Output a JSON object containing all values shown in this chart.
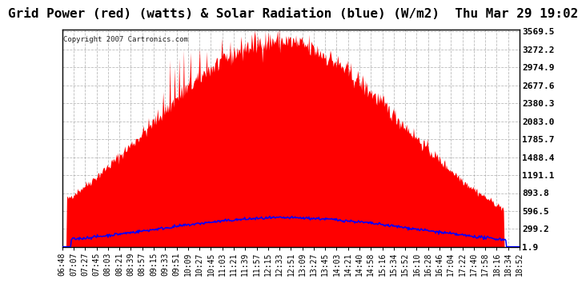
{
  "title": "Grid Power (red) (watts) & Solar Radiation (blue) (W/m2)  Thu Mar 29 19:02",
  "copyright": "Copyright 2007 Cartronics.com",
  "background_color": "#ffffff",
  "plot_bg_color": "#ffffff",
  "grid_color": "#aaaaaa",
  "yticks": [
    1.9,
    299.2,
    596.5,
    893.8,
    1191.1,
    1488.4,
    1785.7,
    2083.0,
    2380.3,
    2677.6,
    2974.9,
    3272.2,
    3569.5
  ],
  "ymin": 0,
  "ymax": 3569.5,
  "x_labels": [
    "06:48",
    "07:07",
    "07:27",
    "07:45",
    "08:03",
    "08:21",
    "08:39",
    "08:57",
    "09:15",
    "09:33",
    "09:51",
    "10:09",
    "10:27",
    "10:45",
    "11:03",
    "11:21",
    "11:39",
    "11:57",
    "12:15",
    "12:33",
    "12:51",
    "13:09",
    "13:27",
    "13:45",
    "14:03",
    "14:21",
    "14:40",
    "14:58",
    "15:16",
    "15:34",
    "15:52",
    "16:10",
    "16:28",
    "16:46",
    "17:04",
    "17:22",
    "17:40",
    "17:58",
    "18:16",
    "18:34",
    "18:52"
  ],
  "red_fill_color": "#ff0000",
  "blue_line_color": "#0000ff",
  "title_fontsize": 11.5,
  "copyright_fontsize": 6.5,
  "axis_label_fontsize": 7.0,
  "ytick_fontsize": 8.0
}
